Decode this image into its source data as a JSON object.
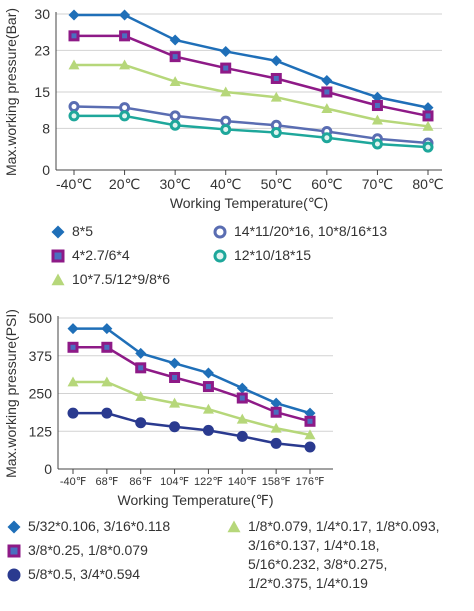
{
  "chart_data": [
    {
      "type": "line",
      "ylabel": "Max.working pressure(Bar)",
      "xlabel": "Working Temperature(℃)",
      "categories": [
        "-40℃",
        "20℃",
        "30℃",
        "40℃",
        "50℃",
        "60℃",
        "70℃",
        "80℃"
      ],
      "yticks": [
        "0",
        "8",
        "15",
        "23",
        "30"
      ],
      "ylim": [
        0,
        30
      ],
      "grid": "horizontal",
      "legend_position": "bottom",
      "series": [
        {
          "name": "8*5",
          "marker": "diamond",
          "color": "#1f6fb8",
          "values": [
            29.8,
            29.8,
            25.0,
            22.8,
            21.0,
            17.2,
            14.0,
            12.0
          ]
        },
        {
          "name": "4*2.7/6*4",
          "marker": "square",
          "color": "#8e1a87",
          "values": [
            25.8,
            25.8,
            21.8,
            19.6,
            17.6,
            15.0,
            12.4,
            10.4
          ]
        },
        {
          "name": "10*7.5/12*9/8*6",
          "marker": "triangle",
          "color": "#b6d77a",
          "values": [
            20.2,
            20.2,
            17.0,
            15.0,
            14.0,
            11.8,
            9.6,
            8.4
          ]
        },
        {
          "name": "14*11/20*16, 10*8/16*13",
          "marker": "circle",
          "color": "#5a6db2",
          "values": [
            12.2,
            12.0,
            10.4,
            9.4,
            8.6,
            7.4,
            6.0,
            5.2
          ]
        },
        {
          "name": "12*10/18*15",
          "marker": "circle",
          "color": "#1ea79b",
          "values": [
            10.4,
            10.4,
            8.6,
            7.8,
            7.2,
            6.2,
            5.0,
            4.4
          ]
        }
      ]
    },
    {
      "type": "line",
      "ylabel": "Max.working pressure(PSI)",
      "xlabel": "Working Temperature(℉)",
      "categories": [
        "-40℉",
        "68℉",
        "86℉",
        "104℉",
        "122℉",
        "140℉",
        "158℉",
        "176℉"
      ],
      "yticks": [
        "0",
        "125",
        "250",
        "375",
        "500"
      ],
      "ylim": [
        0,
        500
      ],
      "grid": "horizontal",
      "legend_position": "bottom",
      "series": [
        {
          "name": "5/32*0.106, 3/16*0.118",
          "marker": "diamond",
          "color": "#1f6fb8",
          "values": [
            465,
            465,
            383,
            350,
            318,
            268,
            218,
            185
          ]
        },
        {
          "name": "3/8*0.25, 1/8*0.079",
          "marker": "square",
          "color": "#8e1a87",
          "values": [
            403,
            403,
            335,
            303,
            273,
            235,
            188,
            158
          ]
        },
        {
          "name": "1/8*0.079, 1/4*0.17, 1/8*0.093,\n3/16*0.137, 1/4*0.18,\n5/16*0.232, 3/8*0.275,\n1/2*0.375, 1/4*0.19",
          "marker": "triangle",
          "color": "#b6d77a",
          "values": [
            288,
            288,
            240,
            218,
            198,
            165,
            135,
            113
          ]
        },
        {
          "name": "5/8*0.5, 3/4*0.594",
          "marker": "circle",
          "color": "#2a3a8f",
          "values": [
            185,
            185,
            153,
            140,
            128,
            108,
            85,
            73
          ]
        }
      ]
    }
  ]
}
